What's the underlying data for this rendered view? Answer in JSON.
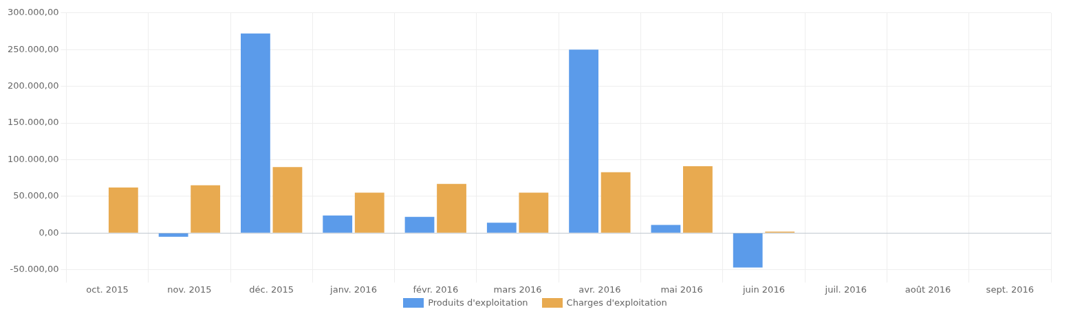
{
  "chart_data": {
    "type": "bar",
    "categories": [
      "oct. 2015",
      "nov. 2015",
      "déc. 2015",
      "janv. 2016",
      "févr. 2016",
      "mars 2016",
      "avr. 2016",
      "mai 2016",
      "juin 2016",
      "juil. 2016",
      "août 2016",
      "sept. 2016"
    ],
    "series": [
      {
        "name": "Produits d'exploitation",
        "color": "#5b9bea",
        "values": [
          null,
          -5000,
          272000,
          24000,
          22000,
          14000,
          250000,
          11000,
          -47000,
          null,
          null,
          null
        ]
      },
      {
        "name": "Charges d'exploitation",
        "color": "#e8aa50",
        "values": [
          62000,
          65000,
          90000,
          55000,
          67000,
          55000,
          83000,
          91000,
          2000,
          null,
          null,
          null
        ]
      }
    ],
    "ylim": [
      -60000,
      300000
    ],
    "yticks": [
      {
        "value": -50000,
        "label": "-50.000,00"
      },
      {
        "value": 0,
        "label": "0,00"
      },
      {
        "value": 50000,
        "label": "50.000,00"
      },
      {
        "value": 100000,
        "label": "100.000,00"
      },
      {
        "value": 150000,
        "label": "150.000,00"
      },
      {
        "value": 200000,
        "label": "200.000,00"
      },
      {
        "value": 250000,
        "label": "250.000,00"
      },
      {
        "value": 300000,
        "label": "300.000,00"
      }
    ],
    "grid": true,
    "legend": "bottom"
  }
}
